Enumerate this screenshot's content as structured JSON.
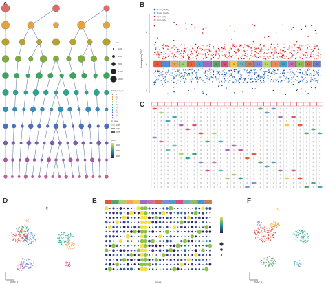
{
  "panels": {
    "A": {
      "label": "A"
    },
    "B": {
      "label": "B"
    },
    "C": {
      "label": "C"
    },
    "D": {
      "label": "D"
    },
    "E": {
      "label": "E"
    },
    "F": {
      "label": "F"
    }
  },
  "panelB": {
    "legend": [
      "Down_Highly",
      "Down_Lowly",
      "Up_Highly",
      "Up_Lowly"
    ],
    "ylabel": "Average log2FC",
    "yticks": [
      "5",
      "0",
      "-5"
    ],
    "clusters": [
      "1",
      "2",
      "3",
      "4",
      "5",
      "6",
      "7",
      "8",
      "9",
      "10",
      "11",
      "12",
      "13",
      "14",
      "15",
      "16",
      "17",
      "18",
      "19",
      "20"
    ],
    "cluster_colors": [
      "#e6553a",
      "#4f8fd8",
      "#f4a259",
      "#a4d36c",
      "#e0643c",
      "#5b9bd5",
      "#9b6cc2",
      "#53a36b",
      "#d94f7c",
      "#f0c84a",
      "#6fb3b8",
      "#c7804f",
      "#7c8cdb",
      "#b5d86a",
      "#e58d5a",
      "#4aa0c9",
      "#c46fb1",
      "#8fbf5c",
      "#dd6b4d",
      "#6b7fd1"
    ]
  },
  "panelA": {
    "size_title": "size",
    "size_values": [
      "100",
      "200",
      "500",
      "1000",
      "2000"
    ],
    "res_title": "SCT_snn_res.",
    "res_values": [
      "0.1",
      "0.2",
      "0.3",
      "0.4",
      "0.5",
      "0.6",
      "0.7",
      "0.8",
      "0.9",
      "1"
    ],
    "prop_title": "in_prop",
    "prop_values": [
      "0.25",
      "0.50",
      "0.75"
    ],
    "count_title": "count",
    "count_values": [
      "2000",
      "4000",
      "6000"
    ]
  },
  "panelE": {
    "xlabel": "Genes"
  },
  "panelD": {
    "axis": "UMAP_1"
  },
  "panelF": {
    "axis": "UMAP_1"
  }
}
